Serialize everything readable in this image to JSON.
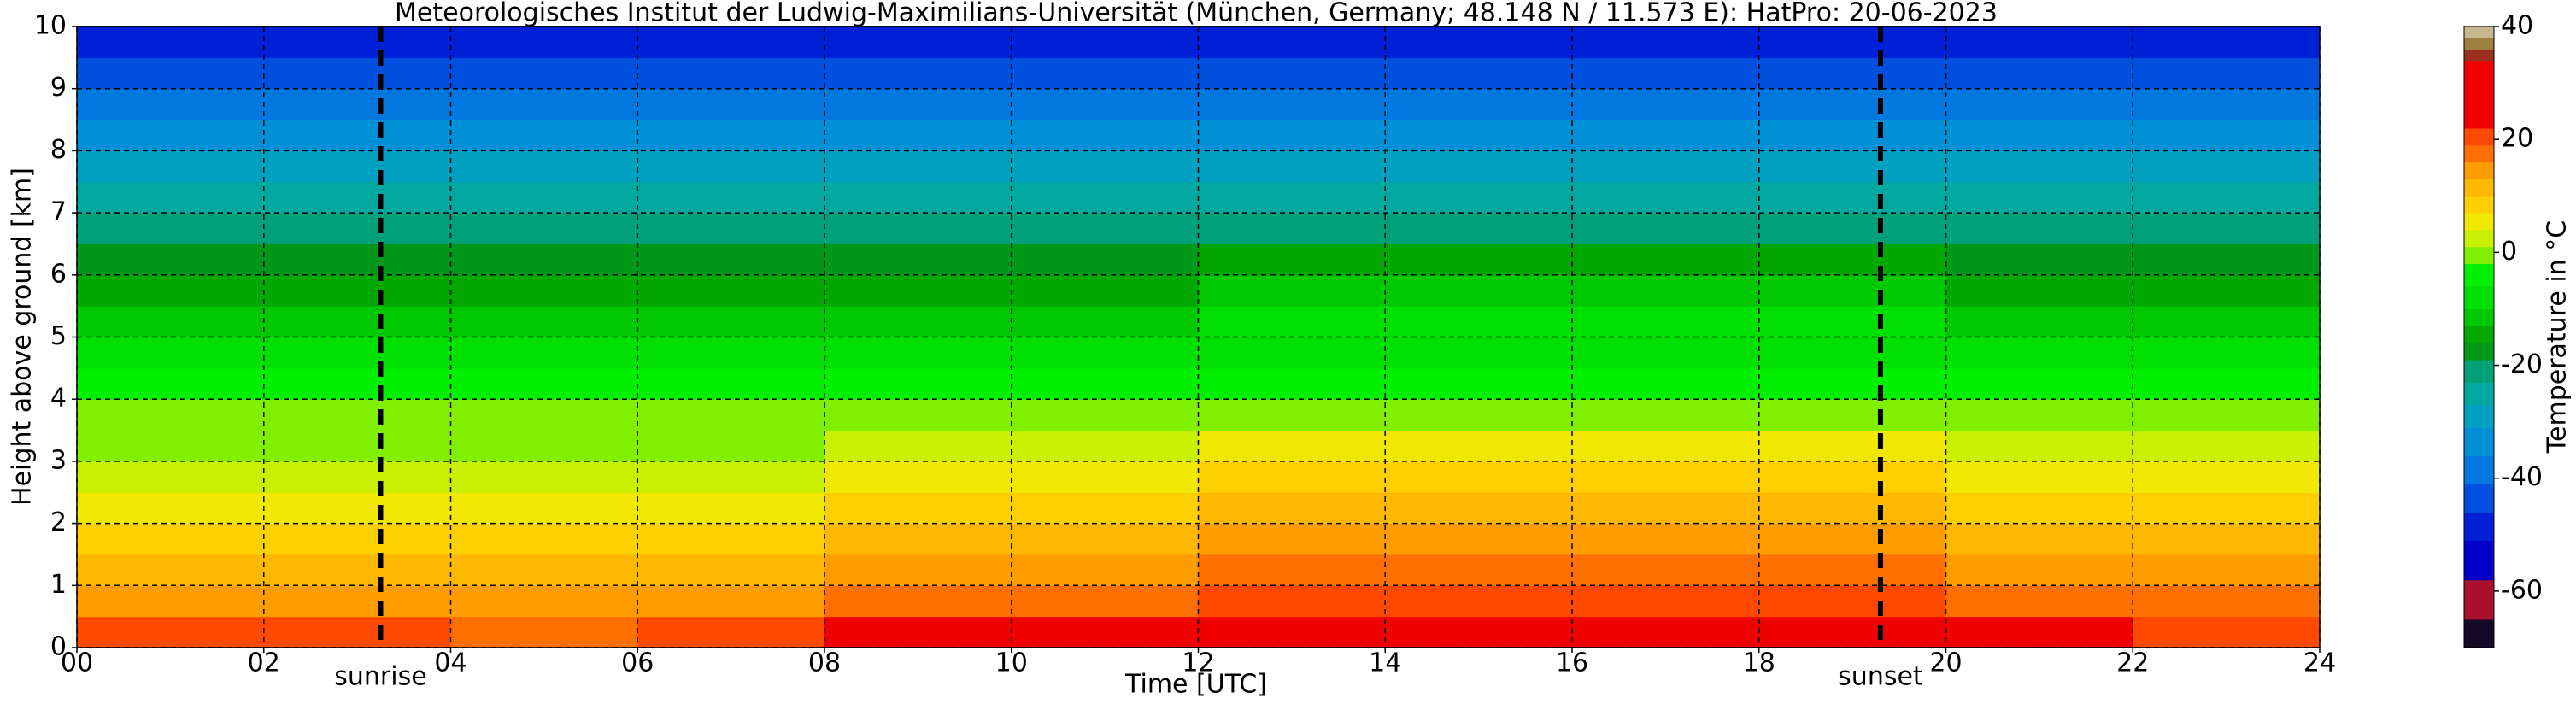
{
  "chart_data": {
    "type": "heatmap",
    "title": "Meteorologisches Institut der Ludwig-Maximilians-Universität (München, Germany; 48.148 N / 11.573 E):    HatPro: 20-06-2023",
    "x_label": "Time [UTC]",
    "y_label": "Height above ground [km]",
    "colorbar_label": "Temperature in °C",
    "xbins": [
      0,
      2,
      4,
      6,
      8,
      10,
      12,
      14,
      16,
      18,
      20,
      22,
      24
    ],
    "ybins": [
      0,
      0.5,
      1,
      1.5,
      2,
      2.5,
      3,
      3.5,
      4,
      4.5,
      5,
      5.5,
      6,
      6.5,
      7,
      7.5,
      8,
      8.5,
      9,
      9.5,
      10
    ],
    "values": [
      [
        20,
        19,
        18,
        20,
        22,
        23,
        25,
        26,
        26,
        24,
        22,
        21
      ],
      [
        15,
        14,
        13,
        15,
        17,
        18,
        20,
        21,
        21,
        19,
        17,
        16
      ],
      [
        12,
        11,
        10,
        12,
        14,
        15,
        17,
        18,
        18,
        16,
        14,
        13
      ],
      [
        9,
        8,
        7,
        9,
        11,
        12,
        14,
        15,
        15,
        13,
        11,
        10
      ],
      [
        6,
        5,
        4,
        6,
        8,
        9,
        11,
        12,
        12,
        10,
        8,
        7
      ],
      [
        3,
        2,
        1,
        3,
        5,
        6,
        8,
        9,
        9,
        7,
        5,
        4
      ],
      [
        0,
        -1,
        -2,
        0,
        2,
        3,
        5,
        6,
        6,
        4,
        2,
        1
      ],
      [
        -1,
        -1,
        -2,
        -1,
        -1,
        -1,
        0,
        0,
        0,
        0,
        -1,
        -1
      ],
      [
        -5,
        -5,
        -6,
        -5,
        -5,
        -5,
        -4,
        -4,
        -4,
        -4,
        -5,
        -5
      ],
      [
        -8,
        -8,
        -9,
        -8,
        -8,
        -8,
        -7,
        -7,
        -7,
        -7,
        -8,
        -8
      ],
      [
        -11,
        -11,
        -12,
        -11,
        -11,
        -11,
        -10,
        -10,
        -10,
        -10,
        -11,
        -11
      ],
      [
        -14,
        -14,
        -15,
        -14,
        -14,
        -14,
        -13,
        -13,
        -13,
        -13,
        -14,
        -14
      ],
      [
        -17,
        -17,
        -18,
        -17,
        -17,
        -17,
        -16,
        -16,
        -16,
        -16,
        -17,
        -17
      ],
      [
        -21,
        -21,
        -22,
        -21,
        -21,
        -21,
        -20,
        -20,
        -20,
        -20,
        -21,
        -21
      ],
      [
        -25,
        -25,
        -26,
        -25,
        -25,
        -25,
        -24,
        -24,
        -24,
        -24,
        -25,
        -25
      ],
      [
        -29,
        -29,
        -30,
        -29,
        -29,
        -29,
        -28,
        -28,
        -28,
        -28,
        -29,
        -29
      ],
      [
        -33,
        -33,
        -34,
        -33,
        -33,
        -33,
        -32,
        -32,
        -32,
        -32,
        -33,
        -33
      ],
      [
        -38,
        -38,
        -39,
        -38,
        -38,
        -38,
        -37,
        -37,
        -37,
        -37,
        -38,
        -38
      ],
      [
        -43,
        -43,
        -44,
        -43,
        -43,
        -43,
        -42,
        -42,
        -42,
        -42,
        -43,
        -43
      ],
      [
        -50,
        -50,
        -51,
        -50,
        -50,
        -50,
        -49,
        -49,
        -49,
        -49,
        -50,
        -50
      ]
    ],
    "xlim": [
      0,
      24
    ],
    "ylim": [
      0,
      10
    ],
    "xticks": [
      {
        "value": 0,
        "label": "00"
      },
      {
        "value": 2,
        "label": "02"
      },
      {
        "value": 4,
        "label": "04"
      },
      {
        "value": 6,
        "label": "06"
      },
      {
        "value": 8,
        "label": "08"
      },
      {
        "value": 10,
        "label": "10"
      },
      {
        "value": 12,
        "label": "12"
      },
      {
        "value": 14,
        "label": "14"
      },
      {
        "value": 16,
        "label": "16"
      },
      {
        "value": 18,
        "label": "18"
      },
      {
        "value": 20,
        "label": "20"
      },
      {
        "value": 22,
        "label": "22"
      },
      {
        "value": 24,
        "label": "24"
      }
    ],
    "yticks": [
      0,
      1,
      2,
      3,
      4,
      5,
      6,
      7,
      8,
      9,
      10
    ],
    "grid": true,
    "clim": [
      -70,
      40
    ],
    "cticks": [
      -60,
      -40,
      -20,
      0,
      20,
      40
    ],
    "colorscale": [
      {
        "value": -70,
        "color": "#140a28"
      },
      {
        "value": -65,
        "color": "#a8102e"
      },
      {
        "value": -58,
        "color": "#0000c8"
      },
      {
        "value": -51,
        "color": "#0020d8"
      },
      {
        "value": -46,
        "color": "#0050e0"
      },
      {
        "value": -41,
        "color": "#0078e0"
      },
      {
        "value": -36,
        "color": "#0090d8"
      },
      {
        "value": -31,
        "color": "#00a0c0"
      },
      {
        "value": -27,
        "color": "#00a8a0"
      },
      {
        "value": -23,
        "color": "#00a078"
      },
      {
        "value": -19,
        "color": "#009818"
      },
      {
        "value": -16,
        "color": "#00a800"
      },
      {
        "value": -13,
        "color": "#00c800"
      },
      {
        "value": -10,
        "color": "#00e000"
      },
      {
        "value": -6,
        "color": "#00f000"
      },
      {
        "value": -2,
        "color": "#80f000"
      },
      {
        "value": 1,
        "color": "#c8f000"
      },
      {
        "value": 4,
        "color": "#f0e800"
      },
      {
        "value": 7,
        "color": "#ffd000"
      },
      {
        "value": 10,
        "color": "#ffb800"
      },
      {
        "value": 13,
        "color": "#ff9c00"
      },
      {
        "value": 16,
        "color": "#ff7000"
      },
      {
        "value": 19,
        "color": "#ff4800"
      },
      {
        "value": 22,
        "color": "#f00000"
      },
      {
        "value": 34,
        "color": "#9a3020"
      },
      {
        "value": 36,
        "color": "#a08040"
      },
      {
        "value": 38,
        "color": "#c8b890"
      }
    ],
    "annotations": [
      {
        "text": "sunrise",
        "x": 3.25
      },
      {
        "text": "sunset",
        "x": 19.3
      }
    ]
  }
}
